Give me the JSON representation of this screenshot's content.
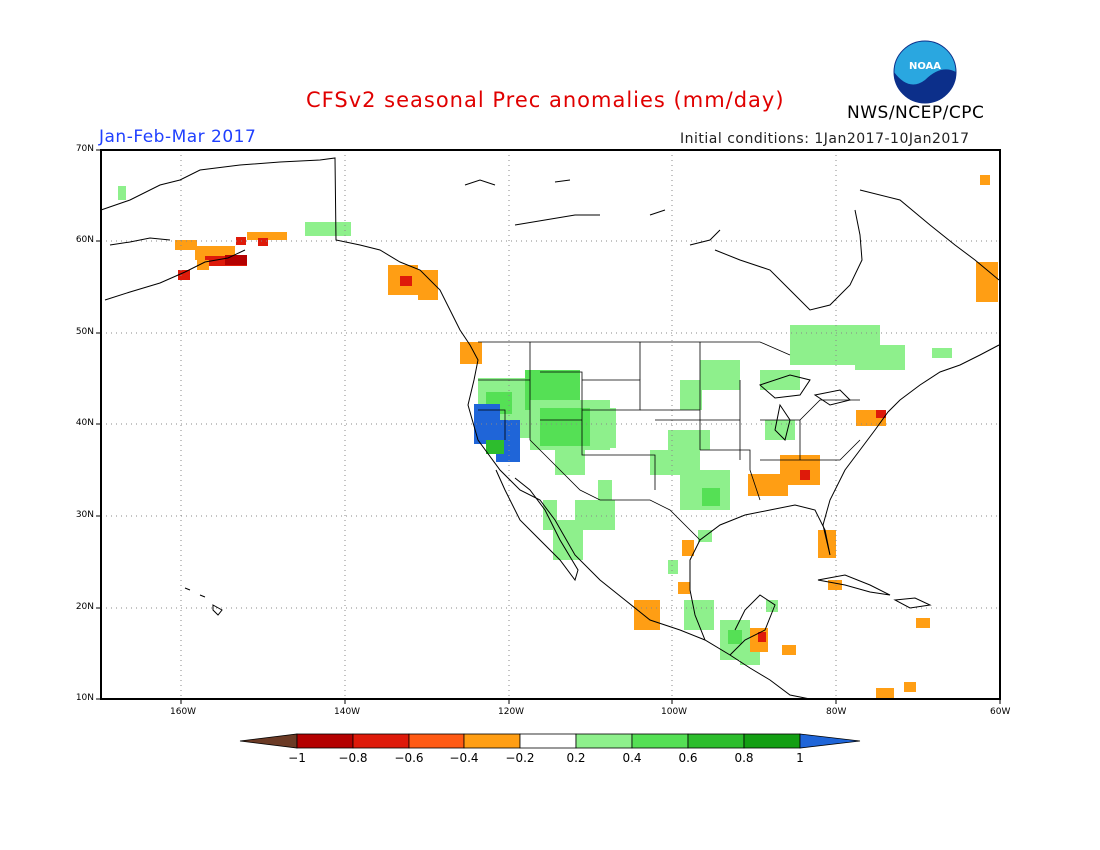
{
  "header": {
    "title": "CFSv2 seasonal Prec anomalies (mm/day)",
    "season": "Jan-Feb-Mar 2017",
    "initial_conditions": "Initial conditions: 1Jan2017-10Jan2017",
    "agency": "NWS/NCEP/CPC",
    "logo_text": "NOAA"
  },
  "axes": {
    "lat_labels": [
      "70N",
      "60N",
      "50N",
      "40N",
      "30N",
      "20N",
      "10N"
    ],
    "lon_labels": [
      "160W",
      "140W",
      "120W",
      "100W",
      "80W",
      "60W"
    ]
  },
  "colorbar": {
    "labels": [
      "-1",
      "-0.8",
      "-0.6",
      "-0.4",
      "-0.2",
      "0.2",
      "0.4",
      "0.6",
      "0.8",
      "1"
    ],
    "colors": [
      "#6b3a25",
      "#b40000",
      "#de1a0a",
      "#ff5a14",
      "#ff9e14",
      "#ffffff",
      "#8ef08c",
      "#55e055",
      "#2dbd2d",
      "#139f13",
      "#1f65d8"
    ]
  },
  "colors": {
    "title": "#e00000",
    "season": "#2040ff",
    "coast": "#000000",
    "grid": "#888888"
  }
}
